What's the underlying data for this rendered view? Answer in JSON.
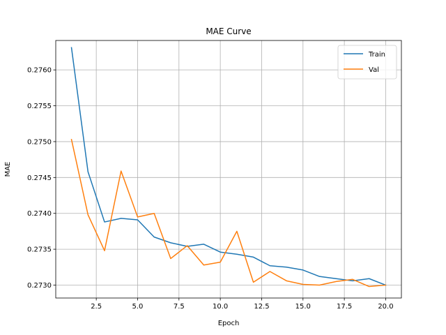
{
  "chart_data": {
    "type": "line",
    "title": "MAE Curve",
    "xlabel": "Epoch",
    "ylabel": "MAE",
    "xlim": [
      0.05,
      20.95
    ],
    "ylim": [
      0.27282,
      0.27641
    ],
    "x_ticks": [
      2.5,
      5.0,
      7.5,
      10.0,
      12.5,
      15.0,
      17.5,
      20.0
    ],
    "x_tick_labels": [
      "2.5",
      "5.0",
      "7.5",
      "10.0",
      "12.5",
      "15.0",
      "17.5",
      "20.0"
    ],
    "y_ticks": [
      0.273,
      0.2735,
      0.274,
      0.2745,
      0.275,
      0.2755,
      0.276
    ],
    "y_tick_labels": [
      "0.2730",
      "0.2735",
      "0.2740",
      "0.2745",
      "0.2750",
      "0.2755",
      "0.2760"
    ],
    "grid": true,
    "legend_position": "upper right",
    "x": [
      1,
      2,
      3,
      4,
      5,
      6,
      7,
      8,
      9,
      10,
      11,
      12,
      13,
      14,
      15,
      16,
      17,
      18,
      19,
      20
    ],
    "series": [
      {
        "name": "Train",
        "color": "#1f77b4",
        "values": [
          0.27631,
          0.27458,
          0.27388,
          0.27393,
          0.27391,
          0.27367,
          0.27359,
          0.27354,
          0.27357,
          0.27346,
          0.27343,
          0.27339,
          0.27327,
          0.27325,
          0.27321,
          0.27312,
          0.27309,
          0.27306,
          0.27309,
          0.273
        ]
      },
      {
        "name": "Val",
        "color": "#ff7f0e",
        "values": [
          0.27503,
          0.27398,
          0.27348,
          0.27459,
          0.27395,
          0.274,
          0.27337,
          0.27355,
          0.27328,
          0.27332,
          0.27375,
          0.27304,
          0.27319,
          0.27306,
          0.27301,
          0.273,
          0.27305,
          0.27308,
          0.27298,
          0.273
        ]
      }
    ]
  }
}
